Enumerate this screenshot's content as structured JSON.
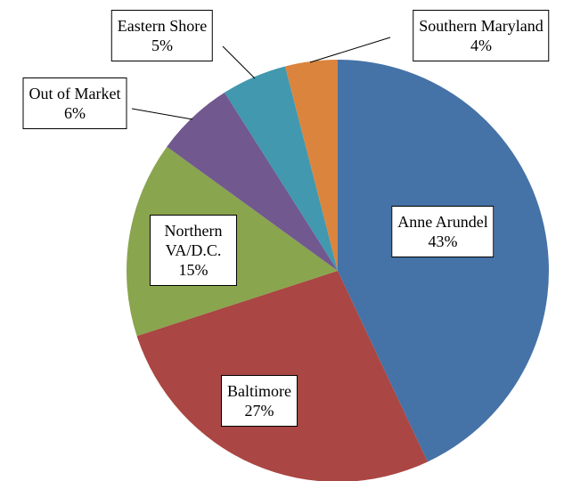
{
  "chart_data": {
    "type": "pie",
    "categories": [
      "Anne Arundel",
      "Baltimore",
      "Northern VA/D.C.",
      "Out of Market",
      "Eastern Shore",
      "Southern Maryland"
    ],
    "values": [
      43,
      27,
      15,
      6,
      5,
      4
    ],
    "value_labels": [
      "43%",
      "27%",
      "15%",
      "6%",
      "5%",
      "4%"
    ],
    "colors": [
      "#4572a7",
      "#aa4643",
      "#89a54e",
      "#71588f",
      "#4198af",
      "#db843d"
    ]
  }
}
